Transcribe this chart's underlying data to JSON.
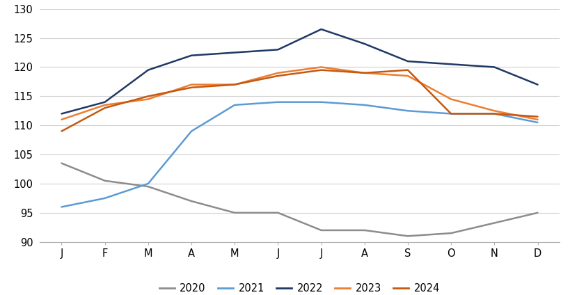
{
  "months": [
    "J",
    "F",
    "M",
    "A",
    "M",
    "J",
    "J",
    "A",
    "S",
    "O",
    "N",
    "D"
  ],
  "series_2020": [
    103.5,
    100.5,
    99.5,
    97.0,
    95.0,
    95.0,
    92.0,
    92.0,
    91.0,
    91.5,
    null,
    95.0
  ],
  "series_2021": [
    96.0,
    97.5,
    100.0,
    109.0,
    113.5,
    114.0,
    114.0,
    113.5,
    112.5,
    112.0,
    112.0,
    110.5
  ],
  "series_2022": [
    112.0,
    114.0,
    119.5,
    122.0,
    122.5,
    123.0,
    126.5,
    124.0,
    121.0,
    120.5,
    120.0,
    117.0
  ],
  "series_2023": [
    111.0,
    113.5,
    114.5,
    117.0,
    117.0,
    119.0,
    120.0,
    119.0,
    118.5,
    114.5,
    112.5,
    111.0
  ],
  "series_2024": [
    109.0,
    113.0,
    115.0,
    116.5,
    117.0,
    118.5,
    119.5,
    119.0,
    119.5,
    112.0,
    112.0,
    111.5
  ],
  "line_colors": {
    "2020": "#8c8c8c",
    "2021": "#5B9BD5",
    "2022": "#203864",
    "2023": "#ED7D31",
    "2024": "#C45911"
  },
  "ylim": [
    90,
    130
  ],
  "yticks": [
    90,
    95,
    100,
    105,
    110,
    115,
    120,
    125,
    130
  ],
  "background_color": "#ffffff",
  "grid_color": "#d0d0d0",
  "linewidth": 1.8
}
